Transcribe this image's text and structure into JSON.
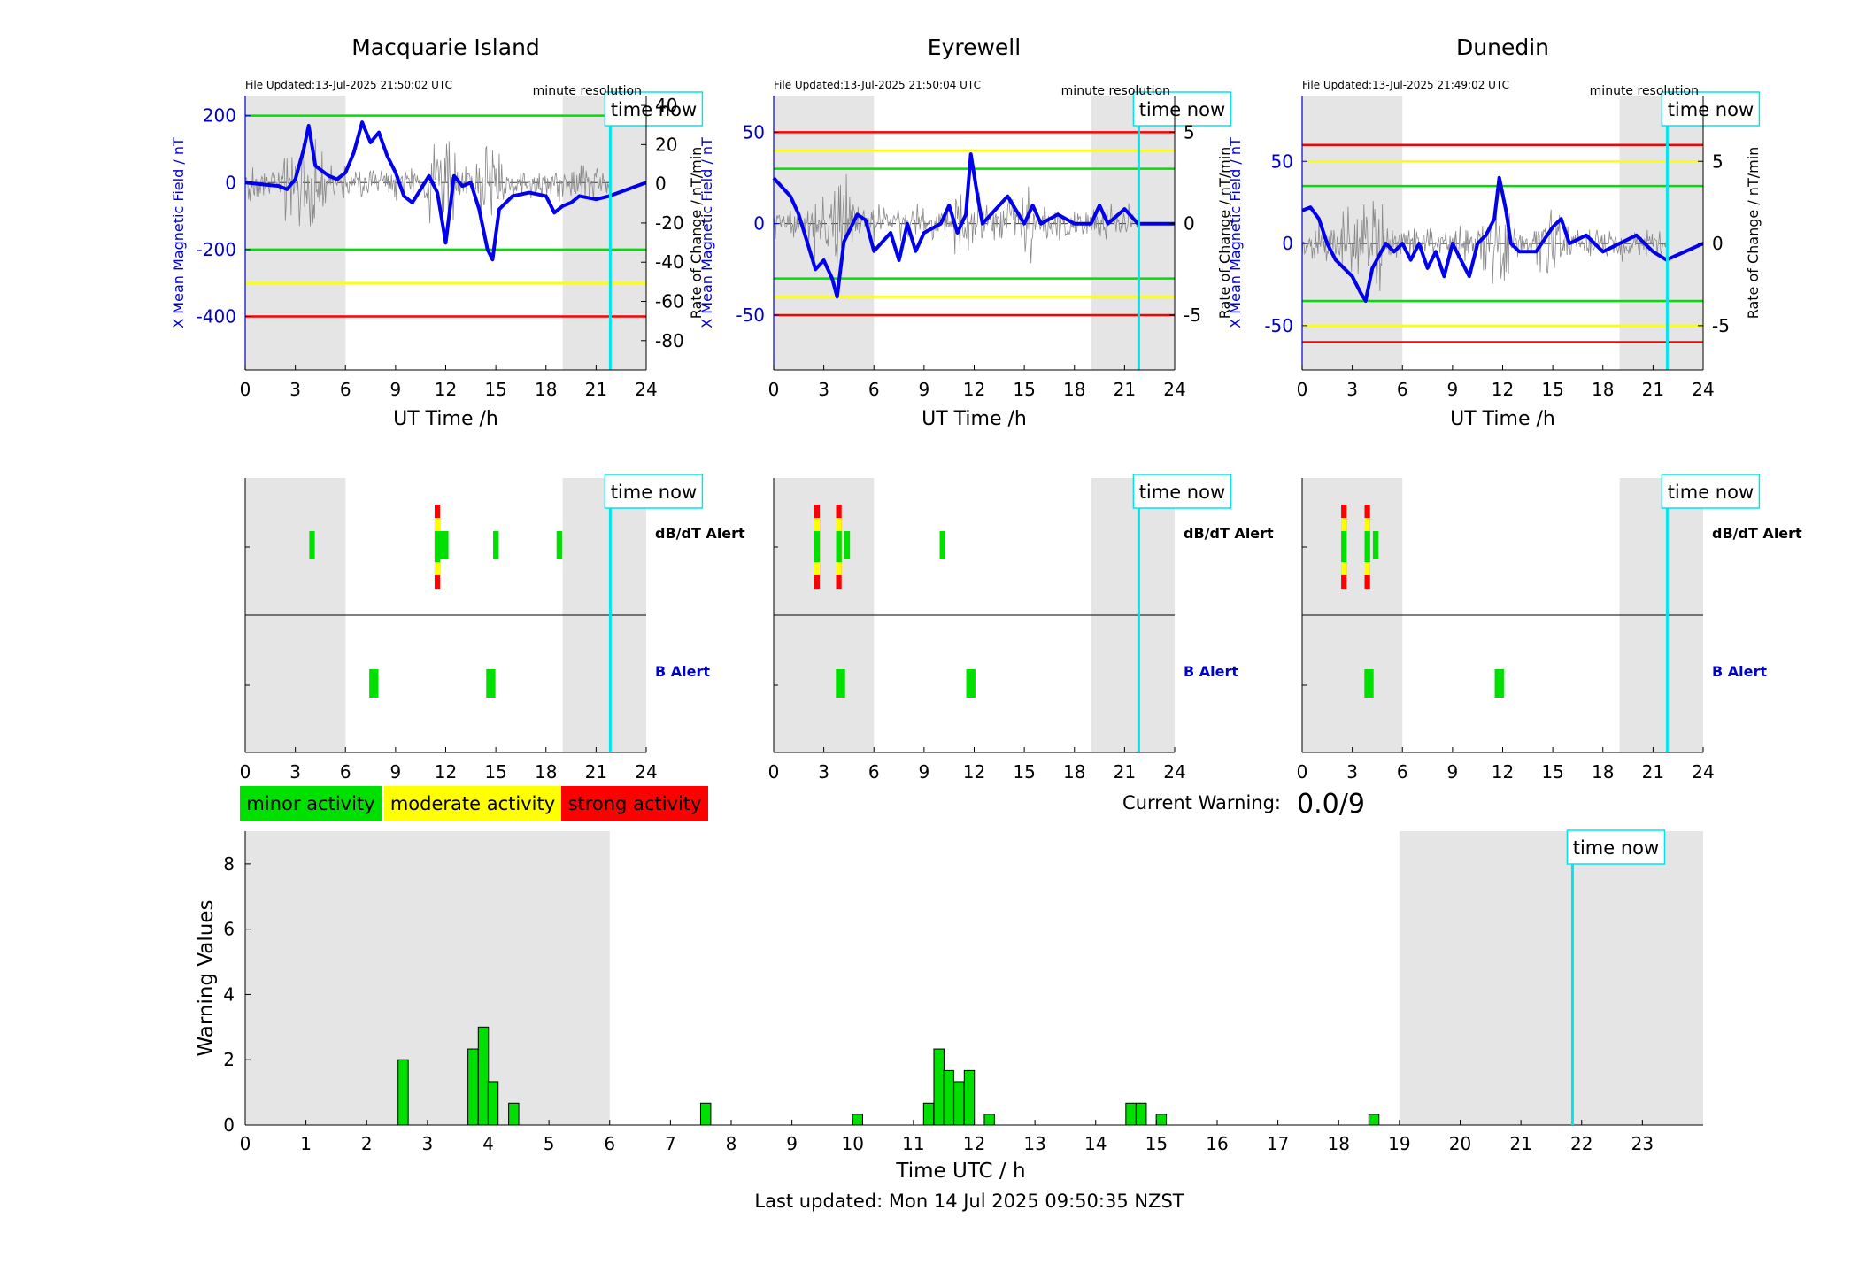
{
  "stations": [
    {
      "name": "Macquarie Island",
      "file_updated": "File Updated:13-Jul-2025 21:50:02 UTC",
      "resolution_label": "minute resolution",
      "left_axis_label": "X Mean Magnetic Field / nT",
      "right_axis_label": "Rate of Change / nT/min",
      "x_axis_label": "UT Time /h",
      "time_now_label": "time now",
      "time_now_hour": 21.85,
      "night_shading_hours": [
        [
          0,
          6
        ],
        [
          19,
          24
        ]
      ],
      "left_ylim": [
        -560,
        260
      ],
      "right_ylim": [
        -95,
        45
      ],
      "left_ticks": [
        "200",
        "0",
        "-200",
        "-400"
      ],
      "left_tick_values": [
        200,
        0,
        -200,
        -400
      ],
      "right_ticks": [
        "40",
        "20",
        "0",
        "-20",
        "-40",
        "-60",
        "-80"
      ],
      "right_tick_values": [
        40,
        20,
        0,
        -20,
        -40,
        -60,
        -80
      ],
      "thresholds": [
        {
          "value": 200,
          "color": "#00e000"
        },
        {
          "value": -200,
          "color": "#00e000"
        },
        {
          "value": -300,
          "color": "#ffff00"
        },
        {
          "value": -400,
          "color": "#ff0000"
        }
      ],
      "field_series_hours": [
        0,
        1,
        2,
        2.5,
        3,
        3.5,
        3.8,
        4.2,
        5,
        5.5,
        6,
        6.5,
        7,
        7.5,
        8,
        8.5,
        9,
        9.5,
        10,
        10.5,
        11,
        11.5,
        12,
        12.5,
        13,
        13.5,
        14,
        14.5,
        14.8,
        15.2,
        16,
        17,
        18,
        18.5,
        19,
        19.5,
        20,
        21,
        21.8,
        24
      ],
      "field_series_values": [
        0,
        -5,
        -10,
        -20,
        10,
        100,
        170,
        50,
        20,
        10,
        30,
        90,
        180,
        120,
        150,
        80,
        30,
        -40,
        -60,
        -20,
        20,
        -30,
        -180,
        20,
        -10,
        0,
        -80,
        -200,
        -230,
        -80,
        -40,
        -30,
        -40,
        -90,
        -70,
        -60,
        -40,
        -50,
        -40,
        0
      ],
      "dbdt_alert": [
        {
          "hour": 4.0,
          "level": "minor"
        },
        {
          "hour": 11.5,
          "level": "strong"
        },
        {
          "hour": 11.8,
          "level": "minor"
        },
        {
          "hour": 12.0,
          "level": "minor"
        },
        {
          "hour": 15.0,
          "level": "minor"
        },
        {
          "hour": 18.8,
          "level": "minor"
        }
      ],
      "b_alert": [
        {
          "hour": 7.7,
          "level": "minor"
        },
        {
          "hour": 14.7,
          "level": "minor"
        }
      ]
    },
    {
      "name": "Eyrewell",
      "file_updated": "File Updated:13-Jul-2025 21:50:04 UTC",
      "resolution_label": "minute resolution",
      "left_axis_label": "X Mean Magnetic Field / nT",
      "right_axis_label": "Rate of Change / nT/min",
      "x_axis_label": "UT Time /h",
      "time_now_label": "time now",
      "time_now_hour": 21.85,
      "night_shading_hours": [
        [
          0,
          6
        ],
        [
          19,
          24
        ]
      ],
      "left_ylim": [
        -80,
        70
      ],
      "right_ylim": [
        -8,
        7
      ],
      "left_ticks": [
        "50",
        "0",
        "-50"
      ],
      "left_tick_values": [
        50,
        0,
        -50
      ],
      "right_ticks": [
        "5",
        "0",
        "-5"
      ],
      "right_tick_values": [
        5,
        0,
        -5
      ],
      "thresholds": [
        {
          "value": 50,
          "color": "#ff0000"
        },
        {
          "value": 40,
          "color": "#ffff00"
        },
        {
          "value": 30,
          "color": "#00e000"
        },
        {
          "value": -30,
          "color": "#00e000"
        },
        {
          "value": -40,
          "color": "#ffff00"
        },
        {
          "value": -50,
          "color": "#ff0000"
        }
      ],
      "field_series_hours": [
        0,
        0.5,
        1,
        1.5,
        2,
        2.5,
        3,
        3.5,
        3.8,
        4.2,
        5,
        5.5,
        6,
        7,
        7.5,
        8,
        8.5,
        9,
        10,
        10.5,
        11,
        11.5,
        11.8,
        12.2,
        12.5,
        13,
        14,
        15,
        15.5,
        16,
        17,
        18,
        19,
        19.5,
        20,
        21,
        21.8,
        24
      ],
      "field_series_values": [
        25,
        20,
        15,
        5,
        -10,
        -25,
        -20,
        -30,
        -40,
        -10,
        5,
        2,
        -15,
        -5,
        -20,
        0,
        -15,
        -5,
        0,
        10,
        -5,
        5,
        38,
        15,
        0,
        5,
        15,
        0,
        10,
        0,
        5,
        0,
        0,
        10,
        0,
        8,
        0,
        0
      ],
      "dbdt_alert": [
        {
          "hour": 2.6,
          "level": "strong"
        },
        {
          "hour": 3.9,
          "level": "strong"
        },
        {
          "hour": 4.4,
          "level": "minor"
        },
        {
          "hour": 10.1,
          "level": "minor"
        }
      ],
      "b_alert": [
        {
          "hour": 4.0,
          "level": "minor"
        },
        {
          "hour": 11.8,
          "level": "minor"
        }
      ]
    },
    {
      "name": "Dunedin",
      "file_updated": "File Updated:13-Jul-2025 21:49:02 UTC",
      "resolution_label": "minute resolution",
      "left_axis_label": "X Mean Magnetic Field / nT",
      "right_axis_label": "Rate of Change / nT/min",
      "x_axis_label": "UT Time /h",
      "time_now_label": "time now",
      "time_now_hour": 21.85,
      "night_shading_hours": [
        [
          0,
          6
        ],
        [
          19,
          24
        ]
      ],
      "left_ylim": [
        -77,
        90
      ],
      "right_ylim": [
        -7.7,
        9
      ],
      "left_ticks": [
        "50",
        "0",
        "-50"
      ],
      "left_tick_values": [
        50,
        0,
        -50
      ],
      "right_ticks": [
        "5",
        "0",
        "-5"
      ],
      "right_tick_values": [
        5,
        0,
        -5
      ],
      "thresholds": [
        {
          "value": 60,
          "color": "#ff0000"
        },
        {
          "value": 50,
          "color": "#ffff00"
        },
        {
          "value": 35,
          "color": "#00e000"
        },
        {
          "value": -35,
          "color": "#00e000"
        },
        {
          "value": -50,
          "color": "#ffff00"
        },
        {
          "value": -60,
          "color": "#ff0000"
        }
      ],
      "field_series_hours": [
        0,
        0.5,
        1,
        1.5,
        2,
        2.5,
        3,
        3.5,
        3.8,
        4.2,
        5,
        5.5,
        6,
        6.5,
        7,
        7.5,
        8,
        8.5,
        9,
        10,
        10.5,
        11,
        11.5,
        11.8,
        12.2,
        12.5,
        13,
        14,
        15,
        15.5,
        16,
        17,
        18,
        19,
        20,
        21,
        21.8,
        24
      ],
      "field_series_values": [
        20,
        22,
        15,
        0,
        -10,
        -15,
        -20,
        -30,
        -35,
        -15,
        0,
        -5,
        0,
        -10,
        0,
        -15,
        -5,
        -20,
        0,
        -20,
        0,
        5,
        15,
        40,
        20,
        0,
        -5,
        -5,
        10,
        15,
        0,
        5,
        -5,
        0,
        5,
        -5,
        -10,
        0
      ],
      "dbdt_alert": [
        {
          "hour": 2.5,
          "level": "strong"
        },
        {
          "hour": 3.9,
          "level": "strong"
        },
        {
          "hour": 4.4,
          "level": "minor"
        }
      ],
      "b_alert": [
        {
          "hour": 4.0,
          "level": "minor"
        },
        {
          "hour": 11.8,
          "level": "minor"
        }
      ]
    }
  ],
  "alert_labels": {
    "dbdt": "dB/dT Alert",
    "b": "B Alert"
  },
  "legend": {
    "minor": "minor activity",
    "moderate": "moderate activity",
    "strong": "strong activity"
  },
  "colors": {
    "minor": "#00e000",
    "moderate": "#ffff00",
    "strong": "#ff0000",
    "time_now": "#00e5ee",
    "night": "#e5e5e5",
    "field_line": "#0000ee",
    "axis_blue": "#0000cc"
  },
  "current_warning": {
    "label": "Current Warning:",
    "value": "0.0/9"
  },
  "chart_data": {
    "type": "bar",
    "xlabel": "Time UTC / h",
    "ylabel": "Warning Values",
    "xlim": [
      0,
      24
    ],
    "ylim": [
      0,
      9
    ],
    "x_ticks": [
      "0",
      "1",
      "2",
      "3",
      "4",
      "5",
      "6",
      "7",
      "8",
      "9",
      "10",
      "11",
      "12",
      "13",
      "14",
      "15",
      "16",
      "17",
      "18",
      "19",
      "20",
      "21",
      "22",
      "23"
    ],
    "y_ticks": [
      "0",
      "2",
      "4",
      "6",
      "8"
    ],
    "night_shading_hours": [
      [
        0,
        6
      ],
      [
        19,
        24
      ]
    ],
    "time_now_hour": 21.85,
    "time_now_label": "time now",
    "x": [
      2.6,
      3.75,
      3.92,
      4.08,
      4.42,
      7.58,
      10.08,
      11.25,
      11.42,
      11.58,
      11.75,
      11.92,
      12.25,
      14.58,
      14.75,
      15.08,
      18.58
    ],
    "values": [
      2,
      2.33,
      3,
      1.33,
      0.67,
      0.67,
      0.33,
      0.67,
      2.33,
      1.67,
      1.33,
      1.67,
      0.33,
      0.67,
      0.67,
      0.33,
      0.33
    ]
  },
  "footer": "Last updated: Mon 14 Jul 2025 09:50:35 NZST"
}
